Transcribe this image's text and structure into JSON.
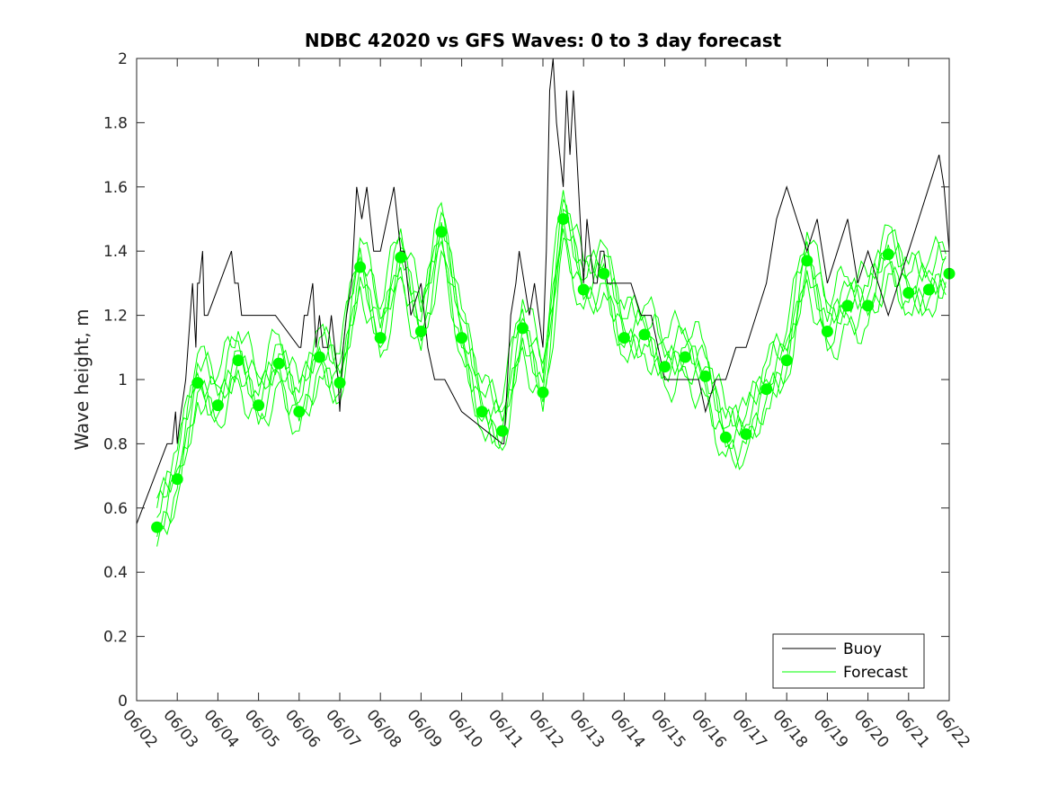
{
  "chart_data": {
    "type": "line",
    "title": "NDBC 42020 vs GFS Waves: 0 to 3 day forecast",
    "xlabel": "",
    "ylabel": "Wave height, m",
    "x_unit": "day",
    "xlim": [
      "06/02",
      "06/22"
    ],
    "ylim": [
      0,
      2
    ],
    "xticks": [
      "06/02",
      "06/03",
      "06/04",
      "06/05",
      "06/06",
      "06/07",
      "06/08",
      "06/09",
      "06/10",
      "06/11",
      "06/12",
      "06/13",
      "06/14",
      "06/15",
      "06/16",
      "06/17",
      "06/18",
      "06/19",
      "06/20",
      "06/21",
      "06/22"
    ],
    "yticks": [
      "0",
      "0.2",
      "0.4",
      "0.6",
      "0.8",
      "1",
      "1.2",
      "1.4",
      "1.6",
      "1.8",
      "2"
    ],
    "grid": false,
    "legend": {
      "placement": "bottom-right",
      "entries": [
        "Buoy",
        "Forecast"
      ]
    },
    "series": [
      {
        "name": "Buoy",
        "color": "#000000",
        "x": [
          "06/02 00:00",
          "06/02 18:00",
          "06/02 21:00",
          "06/02 23:00",
          "06/03 00:00",
          "06/03 01:00",
          "06/03 05:00",
          "06/03 09:00",
          "06/03 11:00",
          "06/03 12:00",
          "06/03 13:00",
          "06/03 15:00",
          "06/03 16:00",
          "06/03 18:00",
          "06/04 08:00",
          "06/04 10:00",
          "06/04 12:00",
          "06/04 14:00",
          "06/04 22:00",
          "06/05 00:00",
          "06/05 01:00",
          "06/05 03:00",
          "06/05 05:00",
          "06/05 07:00",
          "06/05 10:00",
          "06/06 00:00",
          "06/06 01:00",
          "06/06 03:00",
          "06/06 05:00",
          "06/06 08:00",
          "06/06 10:00",
          "06/06 12:00",
          "06/06 14:00",
          "06/06 17:00",
          "06/06 19:00",
          "06/06 21:00",
          "06/06 23:00",
          "06/07 00:00",
          "06/07 02:00",
          "06/07 04:00",
          "06/07 07:00",
          "06/07 10:00",
          "06/07 13:00",
          "06/07 16:00",
          "06/07 18:00",
          "06/07 20:00",
          "06/08 00:00",
          "06/08 08:00",
          "06/08 12:00",
          "06/08 14:00",
          "06/08 16:00",
          "06/08 18:00",
          "06/09 00:00",
          "06/09 04:00",
          "06/09 08:00",
          "06/09 14:00",
          "06/10 00:00",
          "06/11 00:00",
          "06/11 01:00",
          "06/11 03:00",
          "06/11 05:00",
          "06/11 08:00",
          "06/11 10:00",
          "06/11 13:00",
          "06/11 16:00",
          "06/11 19:00",
          "06/12 00:00",
          "06/12 02:00",
          "06/12 04:00",
          "06/12 06:00",
          "06/12 08:00",
          "06/12 10:00",
          "06/12 12:00",
          "06/12 14:00",
          "06/12 16:00",
          "06/12 18:00",
          "06/13 00:00",
          "06/13 02:00",
          "06/13 04:00",
          "06/13 06:00",
          "06/13 08:00",
          "06/13 10:00",
          "06/13 12:00",
          "06/13 14:00",
          "06/14 00:00",
          "06/14 04:00",
          "06/14 10:00",
          "06/14 16:00",
          "06/14 20:00",
          "06/15 00:00",
          "06/15 12:00",
          "06/15 20:00",
          "06/16 00:00",
          "06/16 06:00",
          "06/16 12:00",
          "06/16 18:00",
          "06/17 00:00",
          "06/17 06:00",
          "06/17 12:00",
          "06/17 18:00",
          "06/18 00:00",
          "06/18 06:00",
          "06/18 12:00",
          "06/18 18:00",
          "06/19 00:00",
          "06/19 06:00",
          "06/19 12:00",
          "06/19 18:00",
          "06/20 00:00",
          "06/20 06:00",
          "06/20 12:00",
          "06/20 18:00",
          "06/21 00:00",
          "06/21 06:00",
          "06/21 12:00",
          "06/21 18:00",
          "06/21 21:00",
          "06/22 00:00"
        ],
        "values": [
          0.55,
          0.8,
          0.8,
          0.9,
          0.8,
          0.85,
          1.0,
          1.3,
          1.1,
          1.3,
          1.3,
          1.4,
          1.2,
          1.2,
          1.4,
          1.3,
          1.3,
          1.2,
          1.2,
          1.2,
          1.2,
          1.2,
          1.2,
          1.2,
          1.2,
          1.1,
          1.1,
          1.2,
          1.2,
          1.3,
          1.1,
          1.2,
          1.1,
          1.1,
          1.2,
          1.1,
          1.0,
          0.9,
          1.1,
          1.2,
          1.3,
          1.6,
          1.5,
          1.6,
          1.5,
          1.4,
          1.4,
          1.6,
          1.4,
          1.4,
          1.3,
          1.2,
          1.3,
          1.1,
          1.0,
          1.0,
          0.9,
          0.8,
          0.8,
          1.0,
          1.2,
          1.3,
          1.4,
          1.3,
          1.2,
          1.3,
          1.1,
          1.4,
          1.9,
          2.0,
          1.8,
          1.7,
          1.6,
          1.9,
          1.7,
          1.9,
          1.3,
          1.5,
          1.4,
          1.3,
          1.3,
          1.4,
          1.4,
          1.3,
          1.3,
          1.3,
          1.2,
          1.2,
          1.1,
          1.0,
          1.0,
          1.0,
          0.9,
          1.0,
          1.0,
          1.1,
          1.1,
          1.2,
          1.3,
          1.5,
          1.6,
          1.5,
          1.4,
          1.5,
          1.3,
          1.4,
          1.5,
          1.3,
          1.4,
          1.3,
          1.2,
          1.3,
          1.4,
          1.5,
          1.6,
          1.7,
          1.6,
          1.4
        ]
      },
      {
        "name": "Forecast",
        "color": "#00ff00",
        "x": [
          "06/02 12:00",
          "06/03 00:00",
          "06/03 12:00",
          "06/04 00:00",
          "06/04 12:00",
          "06/05 00:00",
          "06/05 12:00",
          "06/06 00:00",
          "06/06 12:00",
          "06/07 00:00",
          "06/07 12:00",
          "06/08 00:00",
          "06/08 12:00",
          "06/09 00:00",
          "06/09 12:00",
          "06/10 00:00",
          "06/10 12:00",
          "06/11 00:00",
          "06/11 12:00",
          "06/12 00:00",
          "06/12 12:00",
          "06/13 00:00",
          "06/13 12:00",
          "06/14 00:00",
          "06/14 12:00",
          "06/15 00:00",
          "06/15 12:00",
          "06/16 00:00",
          "06/16 12:00",
          "06/17 00:00",
          "06/17 12:00",
          "06/18 00:00",
          "06/18 12:00",
          "06/19 00:00",
          "06/19 12:00",
          "06/20 00:00",
          "06/20 12:00",
          "06/21 00:00",
          "06/21 12:00",
          "06/22 00:00"
        ],
        "values": [
          0.54,
          0.69,
          0.99,
          0.92,
          1.06,
          0.92,
          1.05,
          0.9,
          1.07,
          0.99,
          1.35,
          1.13,
          1.38,
          1.15,
          1.46,
          1.13,
          0.9,
          0.84,
          1.16,
          0.96,
          1.5,
          1.28,
          1.33,
          1.13,
          1.14,
          1.04,
          1.07,
          1.01,
          0.82,
          0.83,
          0.97,
          1.06,
          1.37,
          1.15,
          1.23,
          1.23,
          1.39,
          1.27,
          1.28,
          1.33
        ]
      }
    ]
  }
}
